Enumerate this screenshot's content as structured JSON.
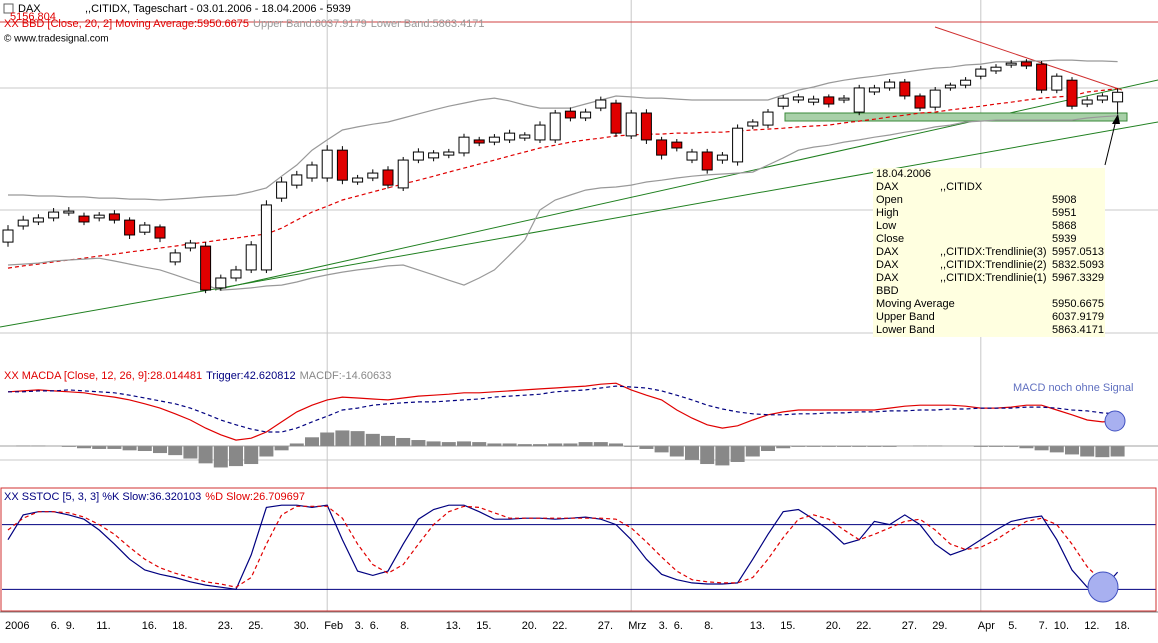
{
  "chart_data": [
    {
      "type": "candlestick",
      "title": "DAX",
      "subtitle": ",,CITIDX, Tageschart - 03.01.2006 - 18.04.2006 - 5939",
      "annotations": [
        "5156.804",
        "© www.tradesignal.com"
      ],
      "categories": [
        "2006",
        null,
        null,
        "6.",
        "9.",
        null,
        "11.",
        null,
        null,
        "16.",
        null,
        "18.",
        null,
        null,
        "23.",
        null,
        "25.",
        null,
        null,
        "30.",
        null,
        "Feb",
        null,
        "3.",
        "6.",
        null,
        "8.",
        null,
        null,
        "13.",
        null,
        "15.",
        null,
        null,
        "20.",
        null,
        "22.",
        null,
        null,
        "27.",
        null,
        "Mrz",
        null,
        "3.",
        "6.",
        null,
        "8.",
        null,
        null,
        "13.",
        null,
        "15.",
        null,
        null,
        "20.",
        null,
        "22.",
        null,
        null,
        "27.",
        null,
        "29.",
        null,
        null,
        "Apr",
        null,
        "5.",
        null,
        "7.",
        "10.",
        null,
        "12.",
        null,
        "18."
      ],
      "open": [
        5455,
        5507,
        5520,
        5533,
        5549,
        5539,
        5533,
        5546,
        5526,
        5487,
        5504,
        5391,
        5436,
        5442,
        5307,
        5339,
        5365,
        5365,
        5597,
        5639,
        5662,
        5662,
        5752,
        5649,
        5662,
        5688,
        5630,
        5720,
        5727,
        5736,
        5743,
        5785,
        5778,
        5785,
        5791,
        5785,
        5785,
        5878,
        5856,
        5888,
        5904,
        5798,
        5872,
        5785,
        5778,
        5720,
        5746,
        5720,
        5714,
        5830,
        5833,
        5894,
        5914,
        5907,
        5924,
        5914,
        5875,
        5940,
        5953,
        5972,
        5927,
        5891,
        5953,
        5962,
        5991,
        6008,
        6027,
        6037,
        6030,
        5946,
        5978,
        5901,
        5914,
        5908
      ],
      "high": [
        5510,
        5540,
        5545,
        5565,
        5568,
        5550,
        5552,
        5558,
        5535,
        5520,
        5512,
        5432,
        5462,
        5455,
        5350,
        5378,
        5458,
        5590,
        5665,
        5685,
        5715,
        5768,
        5765,
        5672,
        5690,
        5700,
        5730,
        5758,
        5752,
        5756,
        5805,
        5795,
        5804,
        5818,
        5810,
        5845,
        5882,
        5890,
        5886,
        5925,
        5915,
        5882,
        5884,
        5795,
        5788,
        5756,
        5756,
        5746,
        5835,
        5852,
        5885,
        5930,
        5934,
        5928,
        5932,
        5930,
        5963,
        5963,
        5982,
        5982,
        5935,
        5956,
        5970,
        5988,
        6024,
        6030,
        6043,
        6046,
        6040,
        6000,
        5988,
        5925,
        5936,
        5951
      ],
      "low": [
        5440,
        5495,
        5510,
        5522,
        5540,
        5510,
        5522,
        5515,
        5465,
        5478,
        5455,
        5380,
        5425,
        5290,
        5298,
        5328,
        5355,
        5355,
        5585,
        5628,
        5650,
        5650,
        5642,
        5640,
        5652,
        5628,
        5620,
        5710,
        5716,
        5726,
        5732,
        5765,
        5768,
        5775,
        5782,
        5775,
        5775,
        5845,
        5846,
        5878,
        5795,
        5788,
        5772,
        5722,
        5748,
        5710,
        5676,
        5708,
        5702,
        5820,
        5823,
        5884,
        5904,
        5897,
        5890,
        5904,
        5865,
        5930,
        5944,
        5916,
        5878,
        5880,
        5944,
        5952,
        5981,
        5998,
        6018,
        6014,
        5936,
        5936,
        5884,
        5891,
        5904,
        5868
      ],
      "close": [
        5494,
        5526,
        5533,
        5552,
        5555,
        5520,
        5542,
        5526,
        5478,
        5510,
        5468,
        5420,
        5452,
        5300,
        5339,
        5365,
        5446,
        5575,
        5649,
        5672,
        5704,
        5752,
        5655,
        5662,
        5678,
        5639,
        5720,
        5746,
        5743,
        5746,
        5794,
        5775,
        5794,
        5807,
        5801,
        5833,
        5872,
        5856,
        5875,
        5914,
        5807,
        5872,
        5785,
        5736,
        5759,
        5746,
        5688,
        5736,
        5823,
        5843,
        5875,
        5920,
        5924,
        5917,
        5901,
        5920,
        5953,
        5953,
        5972,
        5927,
        5888,
        5946,
        5962,
        5978,
        6014,
        6020,
        6033,
        6024,
        5946,
        5991,
        5894,
        5914,
        5927,
        5939
      ],
      "up_color": "#ffffff",
      "down_color": "#e00000",
      "series": [
        {
          "name": "XX BBD [Close, 20, 2] Moving Average:5950.6675",
          "color": "#e00000",
          "dashed": true,
          "values": [
            5371,
            5378,
            5384,
            5391,
            5397,
            5403,
            5410,
            5416,
            5423,
            5429,
            5436,
            5442,
            5449,
            5455,
            5462,
            5468,
            5475,
            5481,
            5500,
            5526,
            5552,
            5571,
            5591,
            5604,
            5617,
            5630,
            5643,
            5655,
            5668,
            5681,
            5694,
            5707,
            5720,
            5733,
            5746,
            5759,
            5768,
            5778,
            5785,
            5791,
            5798,
            5801,
            5804,
            5804,
            5807,
            5807,
            5810,
            5810,
            5814,
            5817,
            5820,
            5823,
            5827,
            5830,
            5833,
            5840,
            5846,
            5852,
            5859,
            5865,
            5872,
            5875,
            5882,
            5888,
            5894,
            5901,
            5907,
            5914,
            5920,
            5924,
            5927,
            5940,
            5945,
            5951
          ]
        },
        {
          "name": "Upper Band:6037.9179",
          "color": "#999999",
          "values": [
            5607,
            5607,
            5604,
            5604,
            5601,
            5601,
            5597,
            5597,
            5594,
            5594,
            5591,
            5594,
            5597,
            5601,
            5604,
            5607,
            5617,
            5630,
            5668,
            5704,
            5752,
            5785,
            5817,
            5827,
            5836,
            5843,
            5856,
            5869,
            5882,
            5894,
            5904,
            5914,
            5920,
            5911,
            5898,
            5888,
            5888,
            5888,
            5901,
            5914,
            5927,
            5924,
            5920,
            5920,
            5917,
            5914,
            5914,
            5914,
            5914,
            5914,
            5914,
            5930,
            5946,
            5956,
            5969,
            5978,
            5985,
            5991,
            5998,
            6004,
            6011,
            6017,
            6020,
            6027,
            6030,
            6037,
            6037,
            6040,
            6040,
            6043,
            6043,
            6040,
            6040,
            6038
          ]
        },
        {
          "name": "Lower Band:5863.4171",
          "color": "#999999",
          "values": [
            5381,
            5384,
            5387,
            5394,
            5397,
            5400,
            5403,
            5394,
            5384,
            5374,
            5365,
            5349,
            5332,
            5316,
            5300,
            5303,
            5307,
            5313,
            5316,
            5326,
            5339,
            5349,
            5358,
            5365,
            5371,
            5378,
            5381,
            5365,
            5349,
            5332,
            5316,
            5339,
            5365,
            5413,
            5462,
            5559,
            5591,
            5607,
            5623,
            5630,
            5633,
            5639,
            5649,
            5655,
            5662,
            5668,
            5672,
            5675,
            5678,
            5681,
            5704,
            5727,
            5752,
            5762,
            5768,
            5778,
            5785,
            5794,
            5801,
            5810,
            5817,
            5827,
            5833,
            5843,
            5846,
            5849,
            5849,
            5849,
            5849,
            5849,
            5849,
            5856,
            5860,
            5863
          ]
        }
      ],
      "ylim": [
        5129,
        6166
      ]
    },
    {
      "type": "line",
      "annotations": [
        "MACD noch ohne Signal"
      ],
      "series": [
        {
          "name": "XX MACDA [Close, 12, 26, 9]:28.014481",
          "color": "#e00000",
          "values": [
            89,
            91,
            93,
            91,
            89,
            87,
            82,
            78,
            72,
            64,
            55,
            43,
            30,
            13,
            -1,
            -12,
            -8,
            5,
            26,
            47,
            61,
            72,
            78,
            76,
            74,
            72,
            76,
            80,
            82,
            84,
            87,
            87,
            89,
            91,
            93,
            95,
            97,
            99,
            101,
            105,
            107,
            93,
            82,
            72,
            51,
            34,
            20,
            13,
            18,
            30,
            41,
            47,
            51,
            51,
            51,
            51,
            51,
            51,
            55,
            59,
            61,
            61,
            61,
            59,
            55,
            55,
            57,
            61,
            61,
            51,
            41,
            30,
            26,
            28
          ]
        },
        {
          "name": "Trigger:42.620812",
          "color": "#000080",
          "dashed": true,
          "values": [
            89,
            89,
            91,
            91,
            93,
            91,
            89,
            87,
            82,
            76,
            70,
            64,
            55,
            43,
            30,
            20,
            11,
            5,
            5,
            13,
            26,
            38,
            51,
            55,
            61,
            64,
            66,
            68,
            68,
            70,
            72,
            74,
            78,
            80,
            82,
            84,
            89,
            91,
            93,
            97,
            101,
            99,
            97,
            91,
            82,
            72,
            61,
            53,
            47,
            43,
            41,
            41,
            43,
            43,
            45,
            45,
            47,
            47,
            49,
            49,
            51,
            51,
            53,
            53,
            55,
            55,
            55,
            57,
            57,
            55,
            51,
            49,
            45,
            43
          ]
        }
      ],
      "ylim": [
        -85,
        143
      ]
    },
    {
      "type": "bar",
      "name": "MACDF:-14.60633",
      "color": "#888888",
      "values": [
        0,
        1,
        1,
        0,
        -1,
        -3,
        -4,
        -4,
        -6,
        -7,
        -10,
        -13,
        -18,
        -25,
        -31,
        -29,
        -26,
        -15,
        -6,
        4,
        13,
        20,
        23,
        22,
        18,
        15,
        12,
        9,
        7,
        6,
        7,
        6,
        4,
        4,
        3,
        3,
        4,
        4,
        6,
        6,
        4,
        -1,
        -4,
        -9,
        -15,
        -20,
        -26,
        -28,
        -23,
        -15,
        -7,
        -3,
        -1,
        -1,
        -1,
        -1,
        -1,
        -1,
        -1,
        0,
        1,
        1,
        0,
        0,
        -1,
        -1,
        -1,
        -3,
        -6,
        -9,
        -12,
        -15,
        -16,
        -15
      ],
      "ylim": [
        -42,
        117
      ]
    },
    {
      "type": "line",
      "series": [
        {
          "name": "XX SSTOC [5, 3, 3] %K Slow:36.320103",
          "color": "#000080",
          "values": [
            66,
            89,
            92,
            92,
            89,
            85,
            75,
            62,
            48,
            38,
            34,
            31,
            27,
            24,
            22,
            20,
            52,
            96,
            98,
            98,
            96,
            98,
            66,
            37,
            33,
            37,
            62,
            85,
            94,
            98,
            98,
            92,
            85,
            85,
            86,
            86,
            85,
            86,
            87,
            85,
            80,
            66,
            48,
            34,
            29,
            26,
            25,
            25,
            26,
            48,
            71,
            92,
            94,
            85,
            75,
            62,
            66,
            83,
            80,
            89,
            80,
            62,
            52,
            57,
            66,
            75,
            83,
            86,
            88,
            66,
            38,
            22,
            20,
            36
          ]
        },
        {
          "name": "%D Slow:26.709697",
          "color": "#e00000",
          "dashed": true,
          "values": [
            75,
            86,
            92,
            92,
            91,
            87,
            80,
            71,
            59,
            48,
            40,
            35,
            31,
            27,
            25,
            22,
            31,
            62,
            89,
            97,
            97,
            97,
            86,
            62,
            43,
            35,
            43,
            62,
            80,
            92,
            97,
            96,
            91,
            86,
            86,
            86,
            86,
            86,
            86,
            86,
            85,
            77,
            64,
            50,
            37,
            29,
            27,
            26,
            26,
            31,
            48,
            68,
            85,
            89,
            85,
            75,
            66,
            71,
            77,
            83,
            85,
            75,
            62,
            57,
            59,
            66,
            75,
            83,
            86,
            80,
            62,
            41,
            27,
            27
          ]
        }
      ],
      "levels": [
        20,
        80
      ],
      "level_color": "#000080",
      "ylim": [
        0,
        113
      ]
    }
  ],
  "info_box": {
    "rows": [
      {
        "label": "18.04.2006"
      },
      {
        "label": "DAX",
        "source": ",,CITIDX"
      },
      {
        "label": "Open",
        "value": "5908"
      },
      {
        "label": "High",
        "value": "5951"
      },
      {
        "label": "Low",
        "value": "5868"
      },
      {
        "label": "Close",
        "value": "5939"
      },
      {
        "label": "DAX",
        "source": ",,CITIDX:Trendlinie(3)",
        "value": "5957.0513"
      },
      {
        "label": "DAX",
        "source": ",,CITIDX:Trendlinie(2)",
        "value": "5832.5093"
      },
      {
        "label": "DAX",
        "source": ",,CITIDX:Trendlinie(1)",
        "value": "5967.3329"
      },
      {
        "label": "BBD"
      },
      {
        "label": "Moving Average",
        "value": "5950.6675"
      },
      {
        "label": "Upper Band",
        "value": "6037.9179"
      },
      {
        "label": "Lower Band",
        "value": "5863.4171"
      }
    ]
  }
}
